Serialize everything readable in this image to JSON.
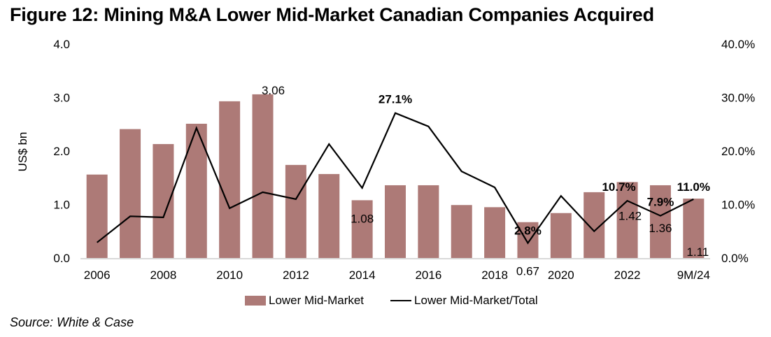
{
  "title": "Figure 12: Mining M&A Lower Mid-Market Canadian Companies Acquired",
  "source": "Source: White & Case",
  "colors": {
    "bar": "#AD7A77",
    "line": "#000000",
    "axis": "#D9D9D9"
  },
  "chart_data": {
    "type": "bar",
    "title": "Figure 12: Mining M&A Lower Mid-Market Canadian Companies Acquired",
    "xlabel": "",
    "ylabel": "US$ bn",
    "y2label": "",
    "categories": [
      "2006",
      "2007",
      "2008",
      "2009",
      "2010",
      "2011",
      "2012",
      "2013",
      "2014",
      "2015",
      "2016",
      "2017",
      "2018",
      "2019",
      "2020",
      "2021",
      "2022",
      "2023",
      "9M/24"
    ],
    "x_tick_labels": [
      "2006",
      "",
      "2008",
      "",
      "2010",
      "",
      "2012",
      "",
      "2014",
      "",
      "2016",
      "",
      "2018",
      "",
      "2020",
      "",
      "2022",
      "",
      "9M/24"
    ],
    "ylim": [
      0,
      4.0
    ],
    "y_ticks": [
      "0.0",
      "1.0",
      "2.0",
      "3.0",
      "4.0"
    ],
    "y2lim": [
      0,
      40.0
    ],
    "y2_ticks": [
      "0.0%",
      "10.0%",
      "20.0%",
      "30.0%",
      "40.0%"
    ],
    "grid": false,
    "legend_position": "bottom",
    "series": [
      {
        "name": "Lower Mid-Market",
        "type": "bar",
        "axis": "left",
        "values": [
          1.56,
          2.41,
          2.13,
          2.51,
          2.93,
          3.06,
          1.74,
          1.57,
          1.08,
          1.36,
          1.36,
          0.99,
          0.95,
          0.67,
          0.84,
          1.23,
          1.42,
          1.36,
          1.11
        ],
        "data_labels": {
          "5": "3.06",
          "8": "1.08",
          "13": "0.67",
          "16": "1.42",
          "17": "1.36",
          "18": "1.11"
        }
      },
      {
        "name": "Lower Mid-Market/Total",
        "type": "line",
        "axis": "right",
        "unit": "%",
        "values": [
          2.9,
          7.8,
          7.6,
          24.3,
          9.3,
          12.3,
          11.0,
          21.3,
          13.1,
          27.1,
          24.6,
          16.2,
          13.2,
          2.8,
          11.6,
          5.0,
          10.7,
          7.9,
          11.0
        ],
        "data_labels": {
          "9": "27.1%",
          "13": "2.8%",
          "16": "10.7%",
          "17": "7.9%",
          "18": "11.0%"
        }
      }
    ]
  }
}
